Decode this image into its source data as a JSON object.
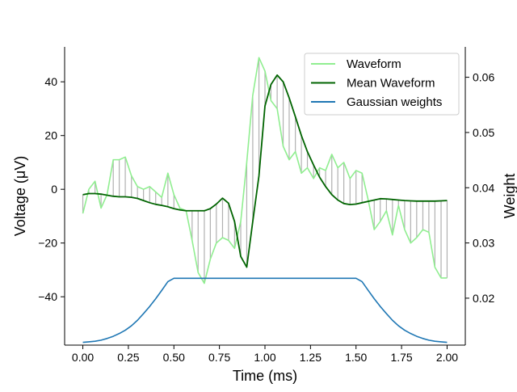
{
  "chart_data": {
    "type": "line",
    "xlabel": "Time (ms)",
    "ylabel": "Voltage (μV)",
    "y2label": "Weight",
    "xlim": [
      -0.1,
      2.1
    ],
    "ylim": [
      -58,
      53
    ],
    "y2lim": [
      0.0115,
      0.0655
    ],
    "xticks": [
      0.0,
      0.25,
      0.5,
      0.75,
      1.0,
      1.25,
      1.5,
      1.75,
      2.0
    ],
    "xtick_labels": [
      "0.00",
      "0.25",
      "0.50",
      "0.75",
      "1.00",
      "1.25",
      "1.50",
      "1.75",
      "2.00"
    ],
    "yticks": [
      -40,
      -20,
      0,
      20,
      40
    ],
    "ytick_labels": [
      "−40",
      "−20",
      "0",
      "20",
      "40"
    ],
    "y2ticks": [
      0.02,
      0.03,
      0.04,
      0.05,
      0.06
    ],
    "y2tick_labels": [
      "0.02",
      "0.03",
      "0.04",
      "0.05",
      "0.06"
    ],
    "grid": false,
    "legend": {
      "placement": "top-right",
      "entries": [
        "Waveform",
        "Mean Waveform",
        "Gaussian weights"
      ]
    },
    "x": [
      0.0,
      0.033,
      0.067,
      0.1,
      0.133,
      0.167,
      0.2,
      0.233,
      0.267,
      0.3,
      0.333,
      0.367,
      0.4,
      0.433,
      0.467,
      0.5,
      0.533,
      0.567,
      0.6,
      0.633,
      0.667,
      0.7,
      0.733,
      0.767,
      0.8,
      0.833,
      0.867,
      0.9,
      0.933,
      0.967,
      1.0,
      1.033,
      1.067,
      1.1,
      1.133,
      1.167,
      1.2,
      1.233,
      1.267,
      1.3,
      1.333,
      1.367,
      1.4,
      1.433,
      1.467,
      1.5,
      1.533,
      1.567,
      1.6,
      1.633,
      1.667,
      1.7,
      1.733,
      1.767,
      1.8,
      1.833,
      1.867,
      1.9,
      1.933,
      1.967,
      2.0
    ],
    "series": [
      {
        "name": "Waveform",
        "color": "#90ee90",
        "axis": "left",
        "values": [
          -9,
          0,
          3,
          -7,
          -2,
          11,
          11,
          12,
          5,
          1,
          0,
          1,
          -1,
          -3,
          6,
          -2,
          -7,
          -8,
          -19,
          -31,
          -35,
          -26,
          -20,
          -18,
          -19,
          -22,
          -12,
          10,
          35,
          49,
          44,
          33,
          30,
          16,
          11,
          14,
          6,
          8,
          4,
          8,
          7,
          13,
          8,
          10,
          4,
          7,
          6,
          -4,
          -15,
          -12,
          -8,
          -17,
          -6,
          -15,
          -20,
          -18,
          -15,
          -16,
          -29,
          -33,
          -33
        ]
      },
      {
        "name": "Mean Waveform",
        "color": "#006400",
        "axis": "left",
        "values": [
          -2,
          -1.6,
          -1.6,
          -1.8,
          -2.2,
          -2.6,
          -2.8,
          -2.8,
          -3,
          -3.4,
          -4.2,
          -5,
          -5.6,
          -6,
          -6.5,
          -7.2,
          -7.7,
          -8,
          -8,
          -8,
          -8,
          -7.2,
          -5.5,
          -3.3,
          -5.2,
          -12,
          -25,
          -29,
          -12,
          5,
          31,
          39,
          42.5,
          40,
          34,
          27,
          20,
          14,
          9,
          4.5,
          1,
          -2,
          -4,
          -5.3,
          -5.7,
          -5.5,
          -5,
          -4.5,
          -4,
          -3.5,
          -3.6,
          -3.8,
          -4,
          -4.2,
          -4.3,
          -4.4,
          -4.4,
          -4.4,
          -4.4,
          -4.3,
          -4.2
        ]
      },
      {
        "name": "Gaussian weights",
        "color": "#1f77b4",
        "axis": "right",
        "values": [
          0.012,
          0.0121,
          0.0122,
          0.0124,
          0.0127,
          0.0131,
          0.0136,
          0.0142,
          0.015,
          0.016,
          0.0172,
          0.0185,
          0.0199,
          0.0214,
          0.023,
          0.0236,
          0.0236,
          0.0236,
          0.0236,
          0.0236,
          0.0236,
          0.0236,
          0.0236,
          0.0236,
          0.0236,
          0.0236,
          0.0236,
          0.0236,
          0.0236,
          0.0236,
          0.0236,
          0.0236,
          0.0236,
          0.0236,
          0.0236,
          0.0236,
          0.0236,
          0.0236,
          0.0236,
          0.0236,
          0.0236,
          0.0236,
          0.0236,
          0.0236,
          0.0236,
          0.0236,
          0.023,
          0.0214,
          0.0199,
          0.0185,
          0.0172,
          0.016,
          0.015,
          0.0142,
          0.0136,
          0.0131,
          0.0127,
          0.0124,
          0.0122,
          0.0121,
          0.012
        ]
      }
    ],
    "connector_color": "#b0b0b0"
  }
}
